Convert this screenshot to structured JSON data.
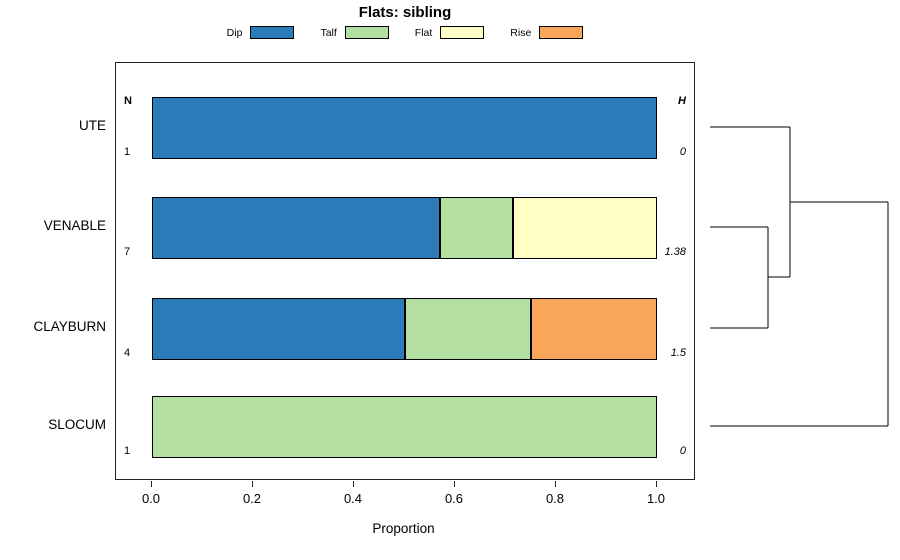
{
  "title": "Flats: sibling",
  "legend": {
    "items": [
      {
        "label": "Dip",
        "color": "#2b7bb9"
      },
      {
        "label": "Talf",
        "color": "#b3dfa2"
      },
      {
        "label": "Flat",
        "color": "#ffffc5"
      },
      {
        "label": "Rise",
        "color": "#f9a65a"
      }
    ]
  },
  "axis": {
    "xlabel": "Proportion",
    "tick_labels": [
      "0.0",
      "0.2",
      "0.4",
      "0.6",
      "0.8",
      "1.0"
    ]
  },
  "columns": {
    "n_header": "N",
    "h_header": "H"
  },
  "chart_data": {
    "type": "bar",
    "subtype": "stacked-horizontal",
    "title": "Flats: sibling",
    "xlabel": "Proportion",
    "xlim": [
      0,
      1
    ],
    "grid": false,
    "legend_position": "top",
    "categories": [
      "UTE",
      "VENABLE",
      "CLAYBURN",
      "SLOCUM"
    ],
    "series": [
      {
        "name": "Dip",
        "color": "#2b7bb9",
        "values": [
          1.0,
          0.571,
          0.5,
          0
        ]
      },
      {
        "name": "Talf",
        "color": "#b3dfa2",
        "values": [
          0,
          0.143,
          0.25,
          1.0
        ]
      },
      {
        "name": "Flat",
        "color": "#ffffc5",
        "values": [
          0,
          0.286,
          0,
          0
        ]
      },
      {
        "name": "Rise",
        "color": "#f9a65a",
        "values": [
          0,
          0,
          0.25,
          0
        ]
      }
    ],
    "n_values": [
      "1",
      "7",
      "4",
      "1"
    ],
    "h_values": [
      "0",
      "1.38",
      "1.5",
      "0"
    ],
    "dendrogram": {
      "structure": "VENABLE and CLAYBURN merge first, that cluster merges with UTE, then the whole merges with SLOCUM at the largest height",
      "segments": [
        [
          10,
          65,
          90,
          65
        ],
        [
          10,
          165,
          68,
          165
        ],
        [
          10,
          266,
          68,
          266
        ],
        [
          68,
          165,
          68,
          266
        ],
        [
          68,
          215,
          90,
          215
        ],
        [
          90,
          65,
          90,
          215
        ],
        [
          90,
          140,
          188,
          140
        ],
        [
          10,
          364,
          188,
          364
        ],
        [
          188,
          140,
          188,
          364
        ]
      ]
    }
  }
}
